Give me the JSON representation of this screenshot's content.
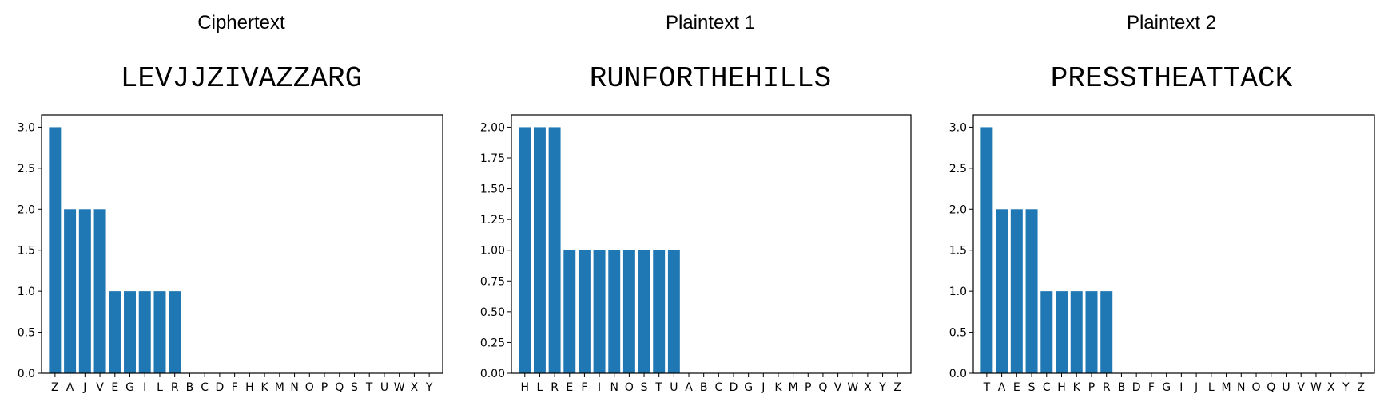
{
  "chart_data": [
    {
      "type": "bar",
      "title": "Ciphertext",
      "text": "LEVJJZIVAZZARG",
      "categories": [
        "Z",
        "A",
        "J",
        "V",
        "E",
        "G",
        "I",
        "L",
        "R",
        "B",
        "C",
        "D",
        "F",
        "H",
        "K",
        "M",
        "N",
        "O",
        "P",
        "Q",
        "S",
        "T",
        "U",
        "W",
        "X",
        "Y"
      ],
      "values": [
        3,
        2,
        2,
        2,
        1,
        1,
        1,
        1,
        1,
        0,
        0,
        0,
        0,
        0,
        0,
        0,
        0,
        0,
        0,
        0,
        0,
        0,
        0,
        0,
        0,
        0
      ],
      "ylim": [
        0,
        3.15
      ],
      "yticks": [
        0,
        0.5,
        1,
        1.5,
        2,
        2.5,
        3
      ],
      "ytick_labels": [
        "0.0",
        "0.5",
        "1.0",
        "1.5",
        "2.0",
        "2.5",
        "3.0"
      ],
      "bar_color": "#1f77b4",
      "grid": false
    },
    {
      "type": "bar",
      "title": "Plaintext 1",
      "text": "RUNFORTHEHILLS",
      "categories": [
        "H",
        "L",
        "R",
        "E",
        "F",
        "I",
        "N",
        "O",
        "S",
        "T",
        "U",
        "A",
        "B",
        "C",
        "D",
        "G",
        "J",
        "K",
        "M",
        "P",
        "Q",
        "V",
        "W",
        "X",
        "Y",
        "Z"
      ],
      "values": [
        2,
        2,
        2,
        1,
        1,
        1,
        1,
        1,
        1,
        1,
        1,
        0,
        0,
        0,
        0,
        0,
        0,
        0,
        0,
        0,
        0,
        0,
        0,
        0,
        0,
        0
      ],
      "ylim": [
        0,
        2.1
      ],
      "yticks": [
        0,
        0.25,
        0.5,
        0.75,
        1,
        1.25,
        1.5,
        1.75,
        2
      ],
      "ytick_labels": [
        "0.00",
        "0.25",
        "0.50",
        "0.75",
        "1.00",
        "1.25",
        "1.50",
        "1.75",
        "2.00"
      ],
      "bar_color": "#1f77b4",
      "grid": false
    },
    {
      "type": "bar",
      "title": "Plaintext 2",
      "text": "PRESSTHEATTACK",
      "categories": [
        "T",
        "A",
        "E",
        "S",
        "C",
        "H",
        "K",
        "P",
        "R",
        "B",
        "D",
        "F",
        "G",
        "I",
        "J",
        "L",
        "M",
        "N",
        "O",
        "Q",
        "U",
        "V",
        "W",
        "X",
        "Y",
        "Z"
      ],
      "values": [
        3,
        2,
        2,
        2,
        1,
        1,
        1,
        1,
        1,
        0,
        0,
        0,
        0,
        0,
        0,
        0,
        0,
        0,
        0,
        0,
        0,
        0,
        0,
        0,
        0,
        0
      ],
      "ylim": [
        0,
        3.15
      ],
      "yticks": [
        0,
        0.5,
        1,
        1.5,
        2,
        2.5,
        3
      ],
      "ytick_labels": [
        "0.0",
        "0.5",
        "1.0",
        "1.5",
        "2.0",
        "2.5",
        "3.0"
      ],
      "bar_color": "#1f77b4",
      "grid": false
    }
  ]
}
